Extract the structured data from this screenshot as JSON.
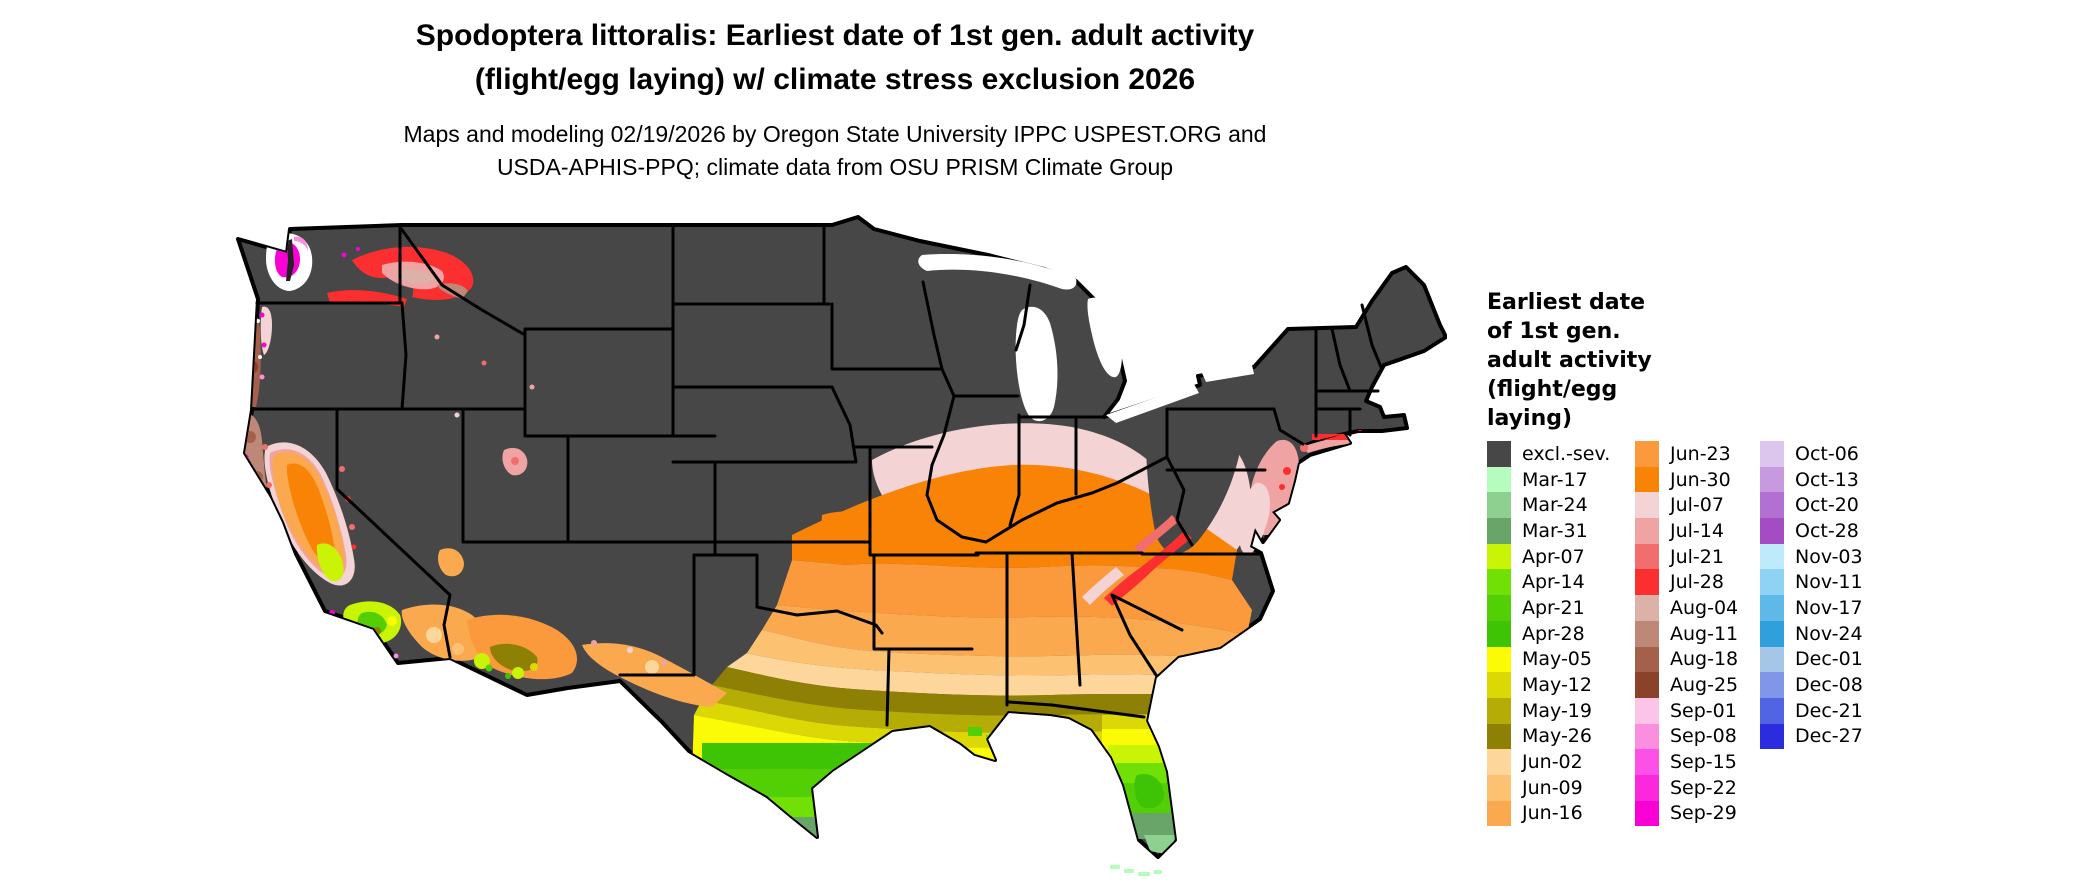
{
  "header": {
    "title_line1": "Spodoptera littoralis: Earliest date of 1st gen. adult activity",
    "title_line2": "(flight/egg laying) w/ climate stress exclusion 2026",
    "subtitle_line1": "Maps and modeling 02/19/2026 by Oregon State University IPPC USPEST.ORG and",
    "subtitle_line2": "USDA-APHIS-PPQ; climate data from OSU PRISM Climate Group"
  },
  "legend": {
    "title_lines": "Earliest date\nof 1st gen.\nadult activity\n(flight/egg\nlaying)",
    "columns": [
      {
        "items": [
          {
            "label": "excl.-sev.",
            "color": "#474747"
          },
          {
            "label": "Mar-17",
            "color": "#b5fcbe"
          },
          {
            "label": "Mar-24",
            "color": "#8ed08f"
          },
          {
            "label": "Mar-31",
            "color": "#69a569"
          },
          {
            "label": "Apr-07",
            "color": "#c9f405"
          },
          {
            "label": "Apr-14",
            "color": "#71e005"
          },
          {
            "label": "Apr-21",
            "color": "#53d005"
          },
          {
            "label": "Apr-28",
            "color": "#3fc305"
          },
          {
            "label": "May-05",
            "color": "#fbfb05"
          },
          {
            "label": "May-12",
            "color": "#dcd805"
          },
          {
            "label": "May-19",
            "color": "#b5ac05"
          },
          {
            "label": "May-26",
            "color": "#8d8005"
          },
          {
            "label": "Jun-02",
            "color": "#fcd69b"
          },
          {
            "label": "Jun-09",
            "color": "#fcc171"
          },
          {
            "label": "Jun-16",
            "color": "#fba94e"
          }
        ]
      },
      {
        "items": [
          {
            "label": "Jun-23",
            "color": "#fa9a3c"
          },
          {
            "label": "Jun-30",
            "color": "#f98306"
          },
          {
            "label": "Jul-07",
            "color": "#f3d3d3"
          },
          {
            "label": "Jul-14",
            "color": "#f0a3a3"
          },
          {
            "label": "Jul-21",
            "color": "#f26d6d"
          },
          {
            "label": "Jul-28",
            "color": "#fb2f2f"
          },
          {
            "label": "Aug-04",
            "color": "#dcb1a8"
          },
          {
            "label": "Aug-11",
            "color": "#bd8877"
          },
          {
            "label": "Aug-18",
            "color": "#a4604a"
          },
          {
            "label": "Aug-25",
            "color": "#8a432a"
          },
          {
            "label": "Sep-01",
            "color": "#fcc5e7"
          },
          {
            "label": "Sep-08",
            "color": "#fb8ede"
          },
          {
            "label": "Sep-15",
            "color": "#fc50e6"
          },
          {
            "label": "Sep-22",
            "color": "#fb28dc"
          },
          {
            "label": "Sep-29",
            "color": "#f900d7"
          }
        ]
      },
      {
        "items": [
          {
            "label": "Oct-06",
            "color": "#ddc6ee"
          },
          {
            "label": "Oct-13",
            "color": "#c79ae0"
          },
          {
            "label": "Oct-20",
            "color": "#b271d2"
          },
          {
            "label": "Oct-28",
            "color": "#a34cc4"
          },
          {
            "label": "Nov-03",
            "color": "#bfeafc"
          },
          {
            "label": "Nov-11",
            "color": "#8fd2f4"
          },
          {
            "label": "Nov-17",
            "color": "#5fb9e8"
          },
          {
            "label": "Nov-24",
            "color": "#30a0dc"
          },
          {
            "label": "Dec-01",
            "color": "#a6c6e8"
          },
          {
            "label": "Dec-08",
            "color": "#8096e8"
          },
          {
            "label": "Dec-21",
            "color": "#5064e4"
          },
          {
            "label": "Dec-27",
            "color": "#2b2be0"
          }
        ]
      }
    ]
  },
  "map": {
    "excluded_fill": "#474747",
    "state_border_color": "#000000",
    "water_fill": "#ffffff",
    "description": "CONUS raster map; north mostly excluded (dark gray); southern latitudinal bands from Jul pinks through Jun oranges, May olives/yellows to Apr/Mar greens in south Texas and Florida; PNW coast magenta/brown; California valley orange"
  }
}
